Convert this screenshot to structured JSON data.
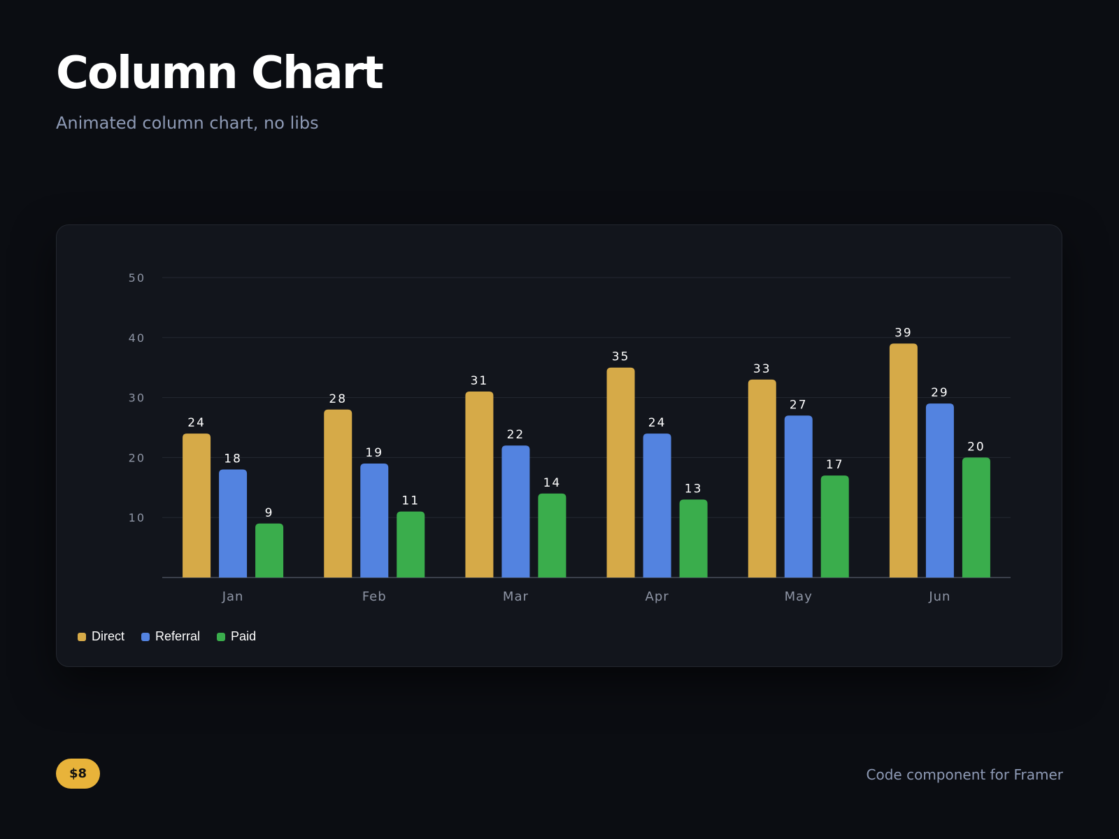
{
  "header": {
    "title": "Column Chart",
    "subtitle": "Animated column chart, no libs"
  },
  "footer": {
    "price": "$8",
    "note": "Code component for Framer"
  },
  "colors": {
    "background": "#0b0d12",
    "card": "#12151c",
    "direct": "#d6aa48",
    "referral": "#5383e0",
    "paid": "#3aad4c",
    "badge": "#e8b33a"
  },
  "chart_data": {
    "type": "bar",
    "title": "",
    "xlabel": "",
    "ylabel": "",
    "categories": [
      "Jan",
      "Feb",
      "Mar",
      "Apr",
      "May",
      "Jun"
    ],
    "series": [
      {
        "name": "Direct",
        "color": "#d6aa48",
        "values": [
          24,
          28,
          31,
          35,
          33,
          39
        ]
      },
      {
        "name": "Referral",
        "color": "#5383e0",
        "values": [
          18,
          19,
          22,
          24,
          27,
          29
        ]
      },
      {
        "name": "Paid",
        "color": "#3aad4c",
        "values": [
          9,
          11,
          14,
          13,
          17,
          20
        ]
      }
    ],
    "ylim": [
      0,
      50
    ],
    "yticks": [
      10,
      20,
      30,
      40,
      50
    ],
    "grid": true,
    "data_labels": true,
    "legend_position": "bottom-left"
  }
}
